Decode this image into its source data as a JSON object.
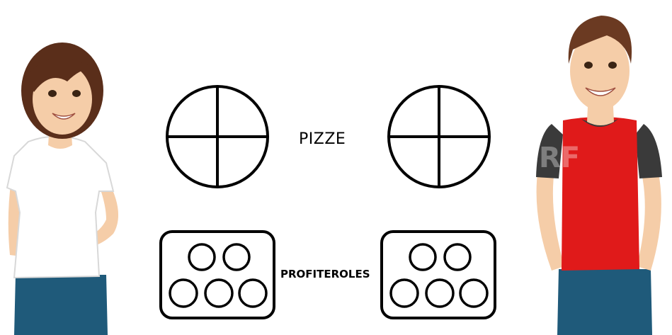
{
  "labels": {
    "pizze": "PIZZE",
    "profiteroles": "PROFITEROLES"
  },
  "watermark": "RF",
  "people": [
    {
      "name": "girl",
      "shirt_color": "#ffffff",
      "hair_color": "#5a2e1a"
    },
    {
      "name": "boy",
      "shirt_color": "#e01a1a",
      "sleeve_color": "#3a3a3a",
      "hair_color": "#6b3a22"
    }
  ],
  "colors": {
    "outline": "#000000",
    "skin": "#f5cda8",
    "jeans": "#1f5a7a"
  }
}
